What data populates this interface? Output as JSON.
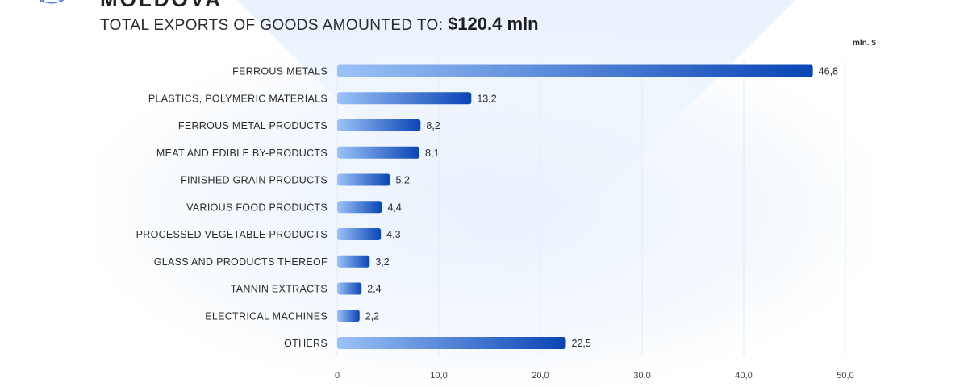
{
  "header": {
    "country": "MOLDOVA",
    "subtitle_prefix": "TOTAL EXPORTS OF GOODS AMOUNTED TO:",
    "subtitle_amount": "$120.4 mln"
  },
  "colors": {
    "bar_start": "#9cc2f7",
    "bar_end": "#0a45b5",
    "grid": "#e6ebf2",
    "text": "#2b2b2b"
  },
  "chart_data": {
    "type": "bar",
    "orientation": "horizontal",
    "title": "TOTAL EXPORTS OF GOODS AMOUNTED TO: $120.4 mln",
    "unit_label": "mln. $",
    "xlabel": "",
    "ylabel": "",
    "xlim": [
      0,
      50
    ],
    "grid": true,
    "categories": [
      "FERROUS METALS",
      "PLASTICS, POLYMERIC MATERIALS",
      "FERROUS METAL PRODUCTS",
      "MEAT AND EDIBLE BY-PRODUCTS",
      "FINISHED GRAIN PRODUCTS",
      "VARIOUS FOOD PRODUCTS",
      "PROCESSED VEGETABLE PRODUCTS",
      "GLASS AND PRODUCTS THEREOF",
      "TANNIN EXTRACTS",
      "ELECTRICAL MACHINES",
      "OTHERS"
    ],
    "values": [
      46.8,
      13.2,
      8.2,
      8.1,
      5.2,
      4.4,
      4.3,
      3.2,
      2.4,
      2.2,
      22.5
    ],
    "value_labels": [
      "46,8",
      "13,2",
      "8,2",
      "8,1",
      "5,2",
      "4,4",
      "4,3",
      "3,2",
      "2,4",
      "2,2",
      "22,5"
    ],
    "x_ticks": [
      0,
      10,
      20,
      30,
      40,
      50
    ],
    "x_tick_labels": [
      "0",
      "10,0",
      "20,0",
      "30,0",
      "40,0",
      "50,0"
    ]
  }
}
